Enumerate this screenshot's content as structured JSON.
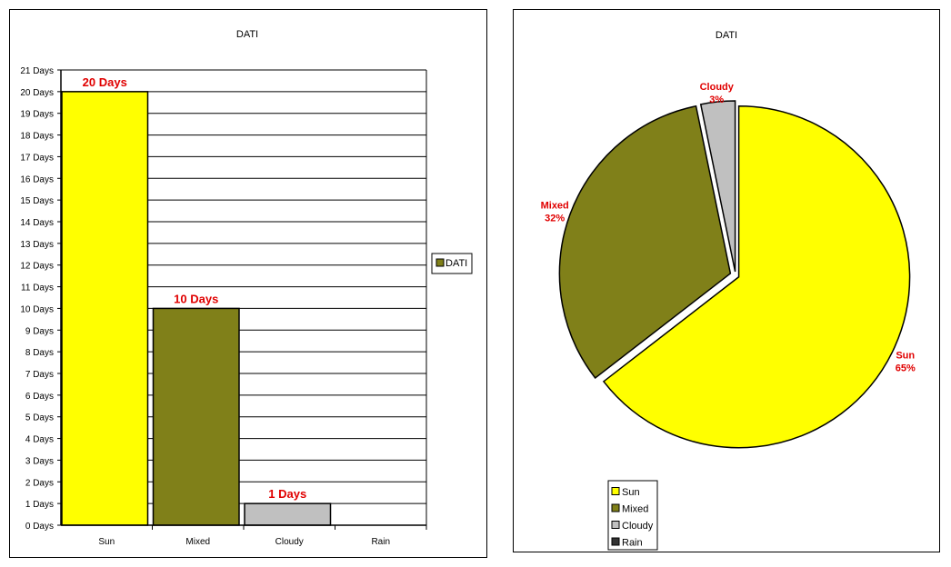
{
  "chart_data": [
    {
      "type": "bar",
      "title": "DATI",
      "categories": [
        "Sun",
        "Mixed",
        "Cloudy",
        "Rain"
      ],
      "series": [
        {
          "name": "DATI",
          "values": [
            20,
            10,
            1,
            0
          ]
        }
      ],
      "data_labels": [
        "20 Days",
        "10 Days",
        "1 Days",
        ""
      ],
      "colors": [
        "#ffff00",
        "#808019",
        "#c0c0c0",
        "#333333"
      ],
      "legend_color": "#808019",
      "ylim": [
        0,
        21
      ],
      "y_ticks": [
        "0 Days",
        "1 Days",
        "2 Days",
        "3 Days",
        "4 Days",
        "5 Days",
        "6 Days",
        "7 Days",
        "8 Days",
        "9 Days",
        "10 Days",
        "11 Days",
        "12 Days",
        "13 Days",
        "14 Days",
        "15 Days",
        "16 Days",
        "17 Days",
        "18 Days",
        "19 Days",
        "20 Days",
        "21 Days"
      ],
      "grid": true,
      "legend": "right"
    },
    {
      "type": "pie",
      "title": "DATI",
      "labels": [
        "Sun",
        "Mixed",
        "Cloudy",
        "Rain"
      ],
      "values": [
        20,
        10,
        1,
        0
      ],
      "slice_names": [
        "Sun",
        "Mixed",
        "Cloudy",
        ""
      ],
      "percent_labels": [
        "65%",
        "32%",
        "3%",
        ""
      ],
      "colors": [
        "#ffff00",
        "#808019",
        "#c0c0c0",
        "#333333"
      ],
      "legend": "bottom-left"
    }
  ]
}
